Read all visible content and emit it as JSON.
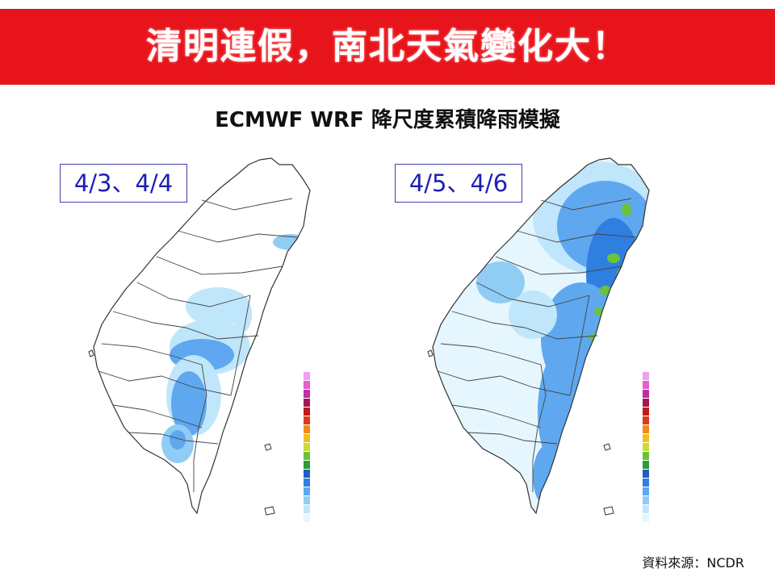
{
  "header": {
    "title": "清明連假，南北天氣變化大！"
  },
  "subtitle": "ECMWF WRF 降尺度累積降雨模擬",
  "maps": [
    {
      "date_label": "4/3、4/4"
    },
    {
      "date_label": "4/5、4/6"
    }
  ],
  "source": "資料來源：NCDR",
  "colors": {
    "banner": "#e8141b",
    "rain_light": "#bfe6fb",
    "rain_mid": "#5fa8ef",
    "rain_heavy": "#2f7fe0",
    "rain_green": "#6cc23a",
    "label_blue": "#1e1eb4"
  },
  "legend_colors": [
    "#e6f6ff",
    "#bfe6fb",
    "#8fcdf5",
    "#5fa8ef",
    "#2f7fe0",
    "#1f5fc0",
    "#2e9a3a",
    "#6cc23a",
    "#c8dc3a",
    "#f0c020",
    "#f08a1a",
    "#e03a1a",
    "#c01a1a",
    "#a01a50",
    "#c030a0",
    "#e060d0",
    "#f0a0f0"
  ]
}
